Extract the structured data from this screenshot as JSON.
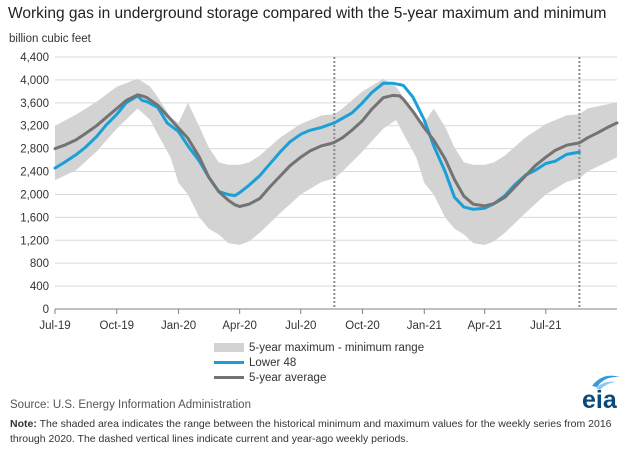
{
  "chart_data": {
    "type": "area",
    "title": "Working gas in underground  storage compared with the 5-year maximum and minimum",
    "ylabel": "billion cubic feet",
    "xlabel": "",
    "ylim": [
      0,
      4400
    ],
    "yticks": [
      0,
      400,
      800,
      1200,
      1600,
      2000,
      2400,
      2800,
      3200,
      3600,
      4000,
      4400
    ],
    "xlim": [
      "2019-07-01",
      "2021-10-15"
    ],
    "x_tick_labels": [
      {
        "date": "2019-07-01",
        "label": "Jul-19"
      },
      {
        "date": "2019-10-01",
        "label": "Oct-19"
      },
      {
        "date": "2020-01-01",
        "label": "Jan-20"
      },
      {
        "date": "2020-04-01",
        "label": "Apr-20"
      },
      {
        "date": "2020-07-01",
        "label": "Jul-20"
      },
      {
        "date": "2020-10-01",
        "label": "Oct-20"
      },
      {
        "date": "2021-01-01",
        "label": "Jan-21"
      },
      {
        "date": "2021-04-01",
        "label": "Apr-21"
      },
      {
        "date": "2021-07-01",
        "label": "Jul-21"
      }
    ],
    "grid": "horizontal",
    "legend_position": "bottom-center",
    "vertical_markers": [
      "2020-08-20",
      "2021-08-20"
    ],
    "band": {
      "name": "5-year maximum - minimum range",
      "color": "#d3d3d3",
      "x": [
        "2019-07-01",
        "2019-08-01",
        "2019-09-01",
        "2019-10-01",
        "2019-11-01",
        "2019-11-20",
        "2019-12-01",
        "2019-12-20",
        "2020-01-01",
        "2020-01-15",
        "2020-02-01",
        "2020-02-15",
        "2020-03-01",
        "2020-03-15",
        "2020-04-01",
        "2020-04-15",
        "2020-05-01",
        "2020-06-01",
        "2020-07-01",
        "2020-08-01",
        "2020-08-20",
        "2020-09-01",
        "2020-10-01",
        "2020-11-01",
        "2020-11-20",
        "2020-12-01",
        "2020-12-20",
        "2021-01-01",
        "2021-01-15",
        "2021-02-01",
        "2021-02-15",
        "2021-03-01",
        "2021-03-15",
        "2021-04-01",
        "2021-04-15",
        "2021-05-01",
        "2021-06-01",
        "2021-07-01",
        "2021-08-01",
        "2021-08-20",
        "2021-09-01",
        "2021-10-15"
      ],
      "upper": [
        3200,
        3390,
        3620,
        3880,
        4020,
        3880,
        3700,
        3350,
        3250,
        3600,
        3180,
        2820,
        2560,
        2520,
        2520,
        2560,
        2680,
        3000,
        3230,
        3380,
        3400,
        3500,
        3800,
        4020,
        3880,
        3700,
        3350,
        3250,
        3500,
        3180,
        2820,
        2560,
        2520,
        2520,
        2560,
        2680,
        3000,
        3230,
        3380,
        3400,
        3500,
        3610
      ],
      "lower": [
        2250,
        2420,
        2750,
        3150,
        3500,
        3300,
        3050,
        2650,
        2200,
        2000,
        1600,
        1400,
        1300,
        1150,
        1120,
        1180,
        1330,
        1680,
        2000,
        2220,
        2280,
        2400,
        2750,
        3150,
        3300,
        3050,
        2650,
        2200,
        2000,
        1600,
        1400,
        1300,
        1150,
        1120,
        1180,
        1330,
        1680,
        2000,
        2220,
        2280,
        2400,
        2650
      ]
    },
    "series": [
      {
        "name": "Lower 48",
        "color": "#1a9fd6",
        "x": [
          "2019-07-01",
          "2019-07-15",
          "2019-08-01",
          "2019-08-15",
          "2019-09-01",
          "2019-09-15",
          "2019-10-01",
          "2019-10-15",
          "2019-11-01",
          "2019-11-08",
          "2019-11-15",
          "2019-12-01",
          "2019-12-15",
          "2020-01-01",
          "2020-01-15",
          "2020-02-01",
          "2020-02-15",
          "2020-03-01",
          "2020-03-15",
          "2020-03-25",
          "2020-04-01",
          "2020-04-15",
          "2020-05-01",
          "2020-05-15",
          "2020-06-01",
          "2020-06-15",
          "2020-07-01",
          "2020-07-15",
          "2020-08-01",
          "2020-08-15",
          "2020-08-20",
          "2020-09-01",
          "2020-09-15",
          "2020-10-01",
          "2020-10-15",
          "2020-11-01",
          "2020-11-15",
          "2020-11-25",
          "2020-12-01",
          "2020-12-15",
          "2021-01-01",
          "2021-01-15",
          "2021-02-01",
          "2021-02-15",
          "2021-03-01",
          "2021-03-15",
          "2021-04-01",
          "2021-04-15",
          "2021-05-01",
          "2021-05-15",
          "2021-06-01",
          "2021-06-15",
          "2021-07-01",
          "2021-07-15",
          "2021-08-01",
          "2021-08-20"
        ],
        "values": [
          2460,
          2560,
          2690,
          2820,
          3010,
          3210,
          3400,
          3600,
          3720,
          3640,
          3620,
          3520,
          3250,
          3100,
          2850,
          2580,
          2300,
          2050,
          2000,
          1980,
          2030,
          2160,
          2330,
          2520,
          2750,
          2920,
          3050,
          3120,
          3170,
          3230,
          3250,
          3330,
          3420,
          3600,
          3780,
          3940,
          3940,
          3920,
          3900,
          3700,
          3300,
          2850,
          2400,
          1950,
          1780,
          1740,
          1760,
          1840,
          1980,
          2160,
          2340,
          2420,
          2540,
          2580,
          2700,
          2740
        ]
      },
      {
        "name": "5-year average",
        "color": "#737373",
        "x": [
          "2019-07-01",
          "2019-07-15",
          "2019-08-01",
          "2019-08-15",
          "2019-09-01",
          "2019-09-15",
          "2019-10-01",
          "2019-10-15",
          "2019-11-01",
          "2019-11-08",
          "2019-11-15",
          "2019-12-01",
          "2019-12-15",
          "2020-01-01",
          "2020-01-15",
          "2020-02-01",
          "2020-02-15",
          "2020-03-01",
          "2020-03-15",
          "2020-03-25",
          "2020-04-01",
          "2020-04-15",
          "2020-05-01",
          "2020-05-15",
          "2020-06-01",
          "2020-06-15",
          "2020-07-01",
          "2020-07-15",
          "2020-08-01",
          "2020-08-15",
          "2020-08-20",
          "2020-09-01",
          "2020-09-15",
          "2020-10-01",
          "2020-10-15",
          "2020-11-01",
          "2020-11-15",
          "2020-11-25",
          "2020-12-01",
          "2020-12-15",
          "2021-01-01",
          "2021-01-15",
          "2021-02-01",
          "2021-02-15",
          "2021-03-01",
          "2021-03-15",
          "2021-04-01",
          "2021-04-15",
          "2021-05-01",
          "2021-05-15",
          "2021-06-01",
          "2021-06-15",
          "2021-07-01",
          "2021-07-15",
          "2021-08-01",
          "2021-08-20",
          "2021-09-01",
          "2021-09-15",
          "2021-10-01",
          "2021-10-15"
        ],
        "values": [
          2800,
          2860,
          2950,
          3060,
          3200,
          3340,
          3500,
          3640,
          3740,
          3720,
          3690,
          3560,
          3380,
          3160,
          2980,
          2650,
          2300,
          2050,
          1900,
          1820,
          1790,
          1830,
          1930,
          2120,
          2330,
          2500,
          2650,
          2760,
          2850,
          2890,
          2910,
          2990,
          3120,
          3290,
          3490,
          3690,
          3730,
          3720,
          3660,
          3450,
          3160,
          2950,
          2620,
          2260,
          1970,
          1830,
          1800,
          1840,
          1950,
          2120,
          2330,
          2500,
          2650,
          2770,
          2860,
          2900,
          2990,
          3070,
          3170,
          3250
        ]
      }
    ]
  },
  "legend": {
    "band_label": "5-year maximum - minimum range",
    "lower48_label": "Lower 48",
    "average_label": "5-year average"
  },
  "source_text": "Source:  U.S. Energy Information Administration",
  "note": {
    "label": "Note:",
    "text": " The shaded area indicates the range between the historical minimum and maximum values for the weekly series from 2016 through 2020. The dashed vertical lines indicate current and year-ago weekly periods."
  },
  "logo": {
    "text": "eia",
    "color": "#0a4a7a",
    "accent": "#3a9ad9"
  }
}
